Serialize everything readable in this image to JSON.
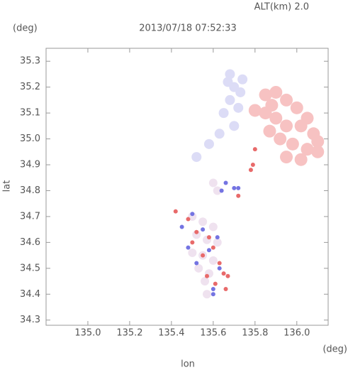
{
  "chart_data": {
    "type": "scatter",
    "title": "2013/07/18 07:52:33",
    "subtitle": "ALT(km) 2.0",
    "x_label": "lon",
    "y_label": "lat",
    "x_unit": "(deg)",
    "y_unit": "(deg)",
    "xlim": [
      134.8,
      136.15
    ],
    "ylim": [
      34.28,
      35.35
    ],
    "xticks": [
      {
        "value": 135,
        "label": "135.0"
      },
      135.2,
      135.4,
      135.6,
      135.8,
      {
        "value": 136,
        "label": "136.0"
      }
    ],
    "yticks": [
      34.3,
      34.4,
      34.5,
      34.6,
      34.7,
      34.8,
      34.9,
      {
        "value": 35,
        "label": "35.0"
      },
      35.1,
      35.2,
      35.3
    ],
    "series": [
      {
        "color": "#f7c2c2",
        "marker_size": 9,
        "x": [
          135.9,
          135.95,
          136.0,
          135.85,
          135.9,
          135.95,
          136.02,
          136.08,
          135.92,
          135.98,
          136.05,
          136.1,
          135.95,
          136.02,
          135.88,
          136.05,
          135.87,
          136.1,
          135.85,
          135.8
        ],
        "values": [
          35.18,
          35.15,
          35.12,
          35.1,
          35.08,
          35.05,
          35.05,
          35.02,
          35.0,
          34.98,
          34.96,
          34.95,
          34.93,
          34.92,
          35.13,
          35.08,
          35.03,
          34.99,
          35.17,
          35.11
        ]
      },
      {
        "color": "#dcdcf6",
        "marker_size": 7,
        "x": [
          135.67,
          135.7,
          135.73,
          135.68,
          135.72,
          135.65,
          135.7,
          135.63,
          135.58,
          135.52,
          135.68,
          135.74
        ],
        "values": [
          35.22,
          35.2,
          35.18,
          35.15,
          35.12,
          35.1,
          35.05,
          35.02,
          34.98,
          34.93,
          35.25,
          35.23
        ]
      },
      {
        "color": "#efe2ef",
        "marker_size": 6,
        "x": [
          135.5,
          135.55,
          135.6,
          135.52,
          135.57,
          135.62,
          135.5,
          135.55,
          135.6,
          135.53,
          135.58,
          135.56,
          135.62,
          135.6,
          135.57
        ],
        "values": [
          34.7,
          34.68,
          34.66,
          34.63,
          34.61,
          34.6,
          34.56,
          34.55,
          34.53,
          34.5,
          34.48,
          34.45,
          34.8,
          34.83,
          34.4
        ]
      },
      {
        "color": "#e86a6a",
        "marker_size": 3,
        "x": [
          135.48,
          135.52,
          135.58,
          135.6,
          135.55,
          135.5,
          135.63,
          135.57,
          135.65,
          135.67,
          135.72,
          135.79,
          135.78,
          135.8,
          135.42,
          135.61,
          135.66
        ],
        "values": [
          34.69,
          34.64,
          34.62,
          34.58,
          34.55,
          34.6,
          34.52,
          34.47,
          34.48,
          34.47,
          34.78,
          34.9,
          34.88,
          34.96,
          34.72,
          34.44,
          34.42
        ]
      },
      {
        "color": "#7474e2",
        "marker_size": 3,
        "x": [
          135.45,
          135.5,
          135.55,
          135.58,
          135.62,
          135.52,
          135.48,
          135.6,
          135.64,
          135.66,
          135.7,
          135.72,
          135.6,
          135.63
        ],
        "values": [
          34.66,
          34.71,
          34.65,
          34.57,
          34.62,
          34.52,
          34.58,
          34.42,
          34.8,
          34.83,
          34.81,
          34.81,
          34.4,
          34.5
        ]
      }
    ]
  }
}
